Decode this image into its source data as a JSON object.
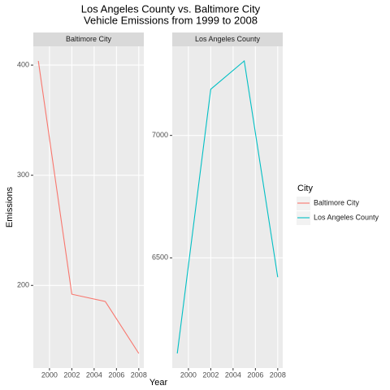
{
  "chart_data": {
    "type": "line",
    "title": [
      "Los Angeles County vs. Baltimore City",
      "Vehicle Emissions from 1999 to 2008"
    ],
    "xlabel": "Year",
    "ylabel": "Emissions",
    "legend_title": "City",
    "legend": "right",
    "grid": true,
    "x": [
      1999,
      2002,
      2005,
      2008
    ],
    "xlim": [
      1998.55,
      2008.45
    ],
    "xticks": [
      2000,
      2002,
      2004,
      2006,
      2008
    ],
    "series": [
      {
        "name": "Baltimore City",
        "color": "#F8766D",
        "values": [
          403.77,
          192.01,
          185.41,
          138.24
        ],
        "ylim": [
          124.97,
          417.04
        ],
        "yticks": [
          200,
          300,
          400
        ]
      },
      {
        "name": "Los Angeles County",
        "color": "#00BFC4",
        "values": [
          6109.69,
          7188.68,
          7304.11,
          6421.02
        ],
        "ylim": [
          6049.97,
          7363.83
        ],
        "yticks": [
          6500,
          7000
        ]
      }
    ]
  }
}
